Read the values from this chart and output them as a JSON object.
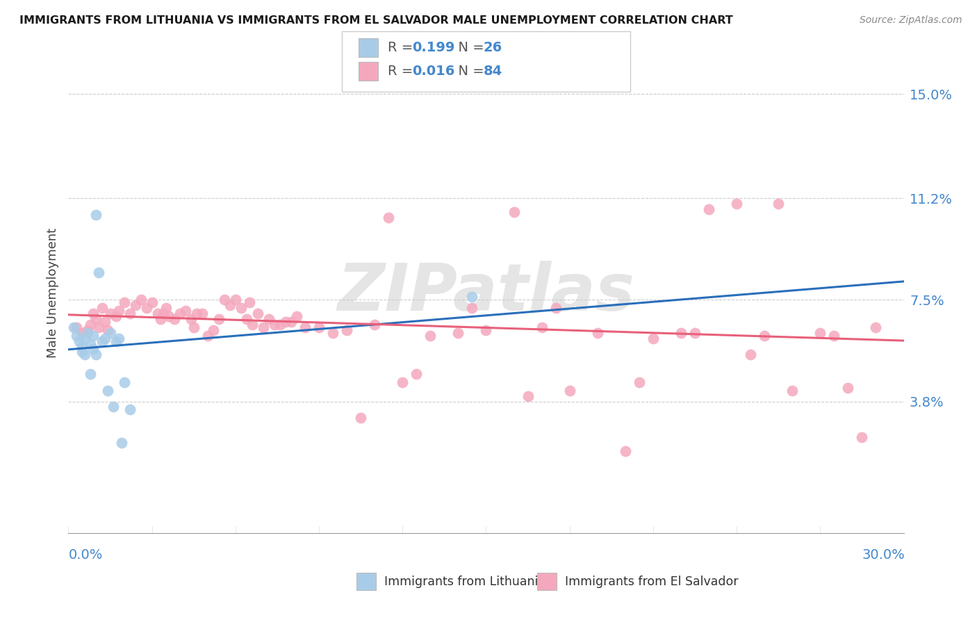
{
  "title": "IMMIGRANTS FROM LITHUANIA VS IMMIGRANTS FROM EL SALVADOR MALE UNEMPLOYMENT CORRELATION CHART",
  "source": "Source: ZipAtlas.com",
  "ylabel": "Male Unemployment",
  "xlim": [
    0.0,
    30.0
  ],
  "ylim": [
    -1.0,
    16.5
  ],
  "ytick_values": [
    3.8,
    7.5,
    11.2,
    15.0
  ],
  "color_lithuania": "#a8cce8",
  "color_el_salvador": "#f4a8be",
  "color_lithuania_line": "#2a6fbb",
  "color_el_salvador_line": "#e8607a",
  "legend_r1": "0.199",
  "legend_n1": "26",
  "legend_r2": "0.016",
  "legend_n2": "84",
  "legend_label1": "Immigrants from Lithuania",
  "legend_label2": "Immigrants from El Salvador",
  "lithuania_x": [
    0.2,
    0.3,
    0.4,
    0.5,
    0.5,
    0.6,
    0.6,
    0.7,
    0.8,
    0.8,
    0.9,
    0.9,
    1.0,
    1.0,
    1.1,
    1.2,
    1.3,
    1.4,
    1.5,
    1.6,
    1.7,
    1.8,
    1.9,
    2.0,
    2.2,
    14.5
  ],
  "lithuania_y": [
    6.5,
    6.2,
    6.0,
    5.8,
    5.6,
    6.1,
    5.5,
    6.3,
    5.9,
    4.8,
    6.2,
    5.7,
    10.6,
    5.5,
    8.5,
    6.0,
    6.1,
    4.2,
    6.3,
    3.6,
    6.0,
    6.1,
    2.3,
    4.5,
    3.5,
    7.6
  ],
  "el_salvador_x": [
    0.3,
    0.5,
    0.7,
    0.8,
    0.9,
    1.0,
    1.1,
    1.2,
    1.3,
    1.4,
    1.5,
    1.7,
    1.8,
    2.0,
    2.2,
    2.4,
    2.6,
    2.8,
    3.0,
    3.2,
    3.3,
    3.4,
    3.5,
    3.6,
    3.8,
    4.0,
    4.2,
    4.4,
    4.5,
    4.6,
    4.8,
    5.0,
    5.2,
    5.4,
    5.6,
    5.8,
    6.0,
    6.2,
    6.4,
    6.5,
    6.6,
    6.8,
    7.0,
    7.2,
    7.4,
    7.6,
    7.8,
    8.0,
    8.2,
    8.5,
    9.0,
    9.5,
    10.0,
    10.5,
    11.0,
    11.5,
    12.0,
    12.5,
    13.0,
    14.0,
    14.5,
    15.0,
    16.0,
    17.0,
    17.5,
    18.0,
    19.0,
    20.0,
    21.0,
    22.0,
    23.0,
    24.0,
    24.5,
    25.0,
    26.0,
    27.0,
    28.0,
    28.5,
    29.0,
    16.5,
    20.5,
    22.5,
    25.5,
    27.5
  ],
  "el_salvador_y": [
    6.5,
    6.3,
    6.4,
    6.6,
    7.0,
    6.8,
    6.5,
    7.2,
    6.7,
    6.4,
    7.0,
    6.9,
    7.1,
    7.4,
    7.0,
    7.3,
    7.5,
    7.2,
    7.4,
    7.0,
    6.8,
    7.0,
    7.2,
    6.9,
    6.8,
    7.0,
    7.1,
    6.8,
    6.5,
    7.0,
    7.0,
    6.2,
    6.4,
    6.8,
    7.5,
    7.3,
    7.5,
    7.2,
    6.8,
    7.4,
    6.6,
    7.0,
    6.5,
    6.8,
    6.6,
    6.6,
    6.7,
    6.7,
    6.9,
    6.5,
    6.5,
    6.3,
    6.4,
    3.2,
    6.6,
    10.5,
    4.5,
    4.8,
    6.2,
    6.3,
    7.2,
    6.4,
    10.7,
    6.5,
    7.2,
    4.2,
    6.3,
    2.0,
    6.1,
    6.3,
    10.8,
    11.0,
    5.5,
    6.2,
    4.2,
    6.3,
    4.3,
    2.5,
    6.5,
    4.0,
    4.5,
    6.3,
    11.0,
    6.2
  ]
}
